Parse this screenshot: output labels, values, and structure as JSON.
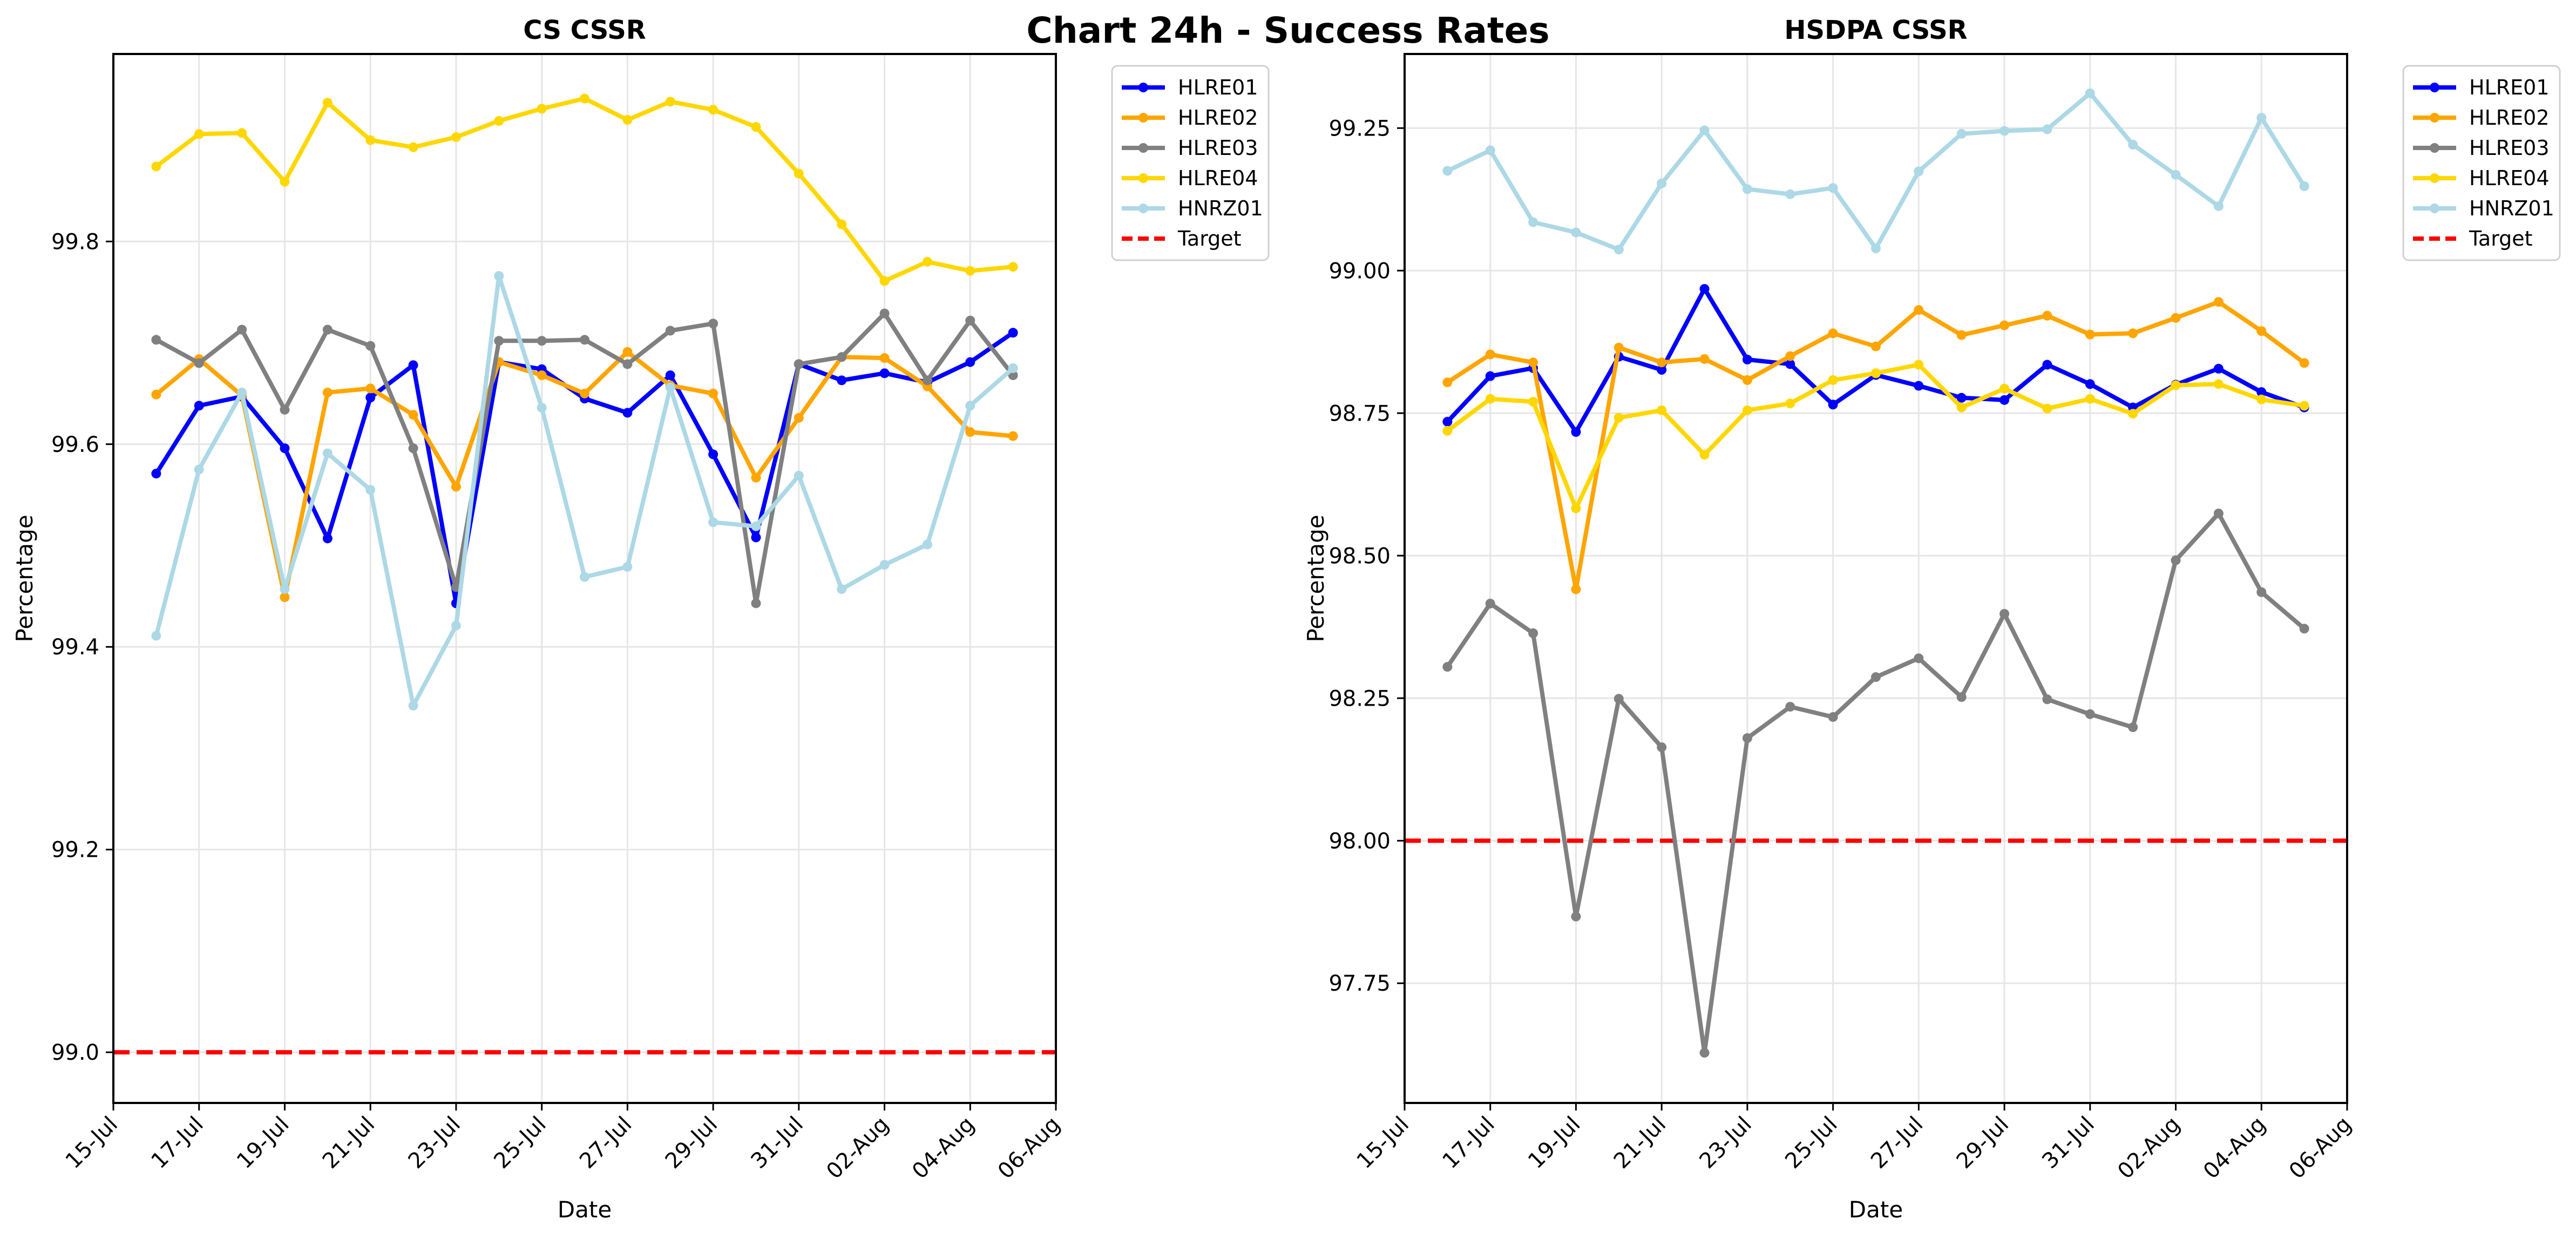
{
  "title": "Chart 24h - Success Rates",
  "chart_data": [
    {
      "type": "line",
      "title": "CS CSSR",
      "xlabel": "Date",
      "ylabel": "Percentage",
      "x": [
        "16-Jul",
        "17-Jul",
        "18-Jul",
        "19-Jul",
        "20-Jul",
        "21-Jul",
        "22-Jul",
        "23-Jul",
        "24-Jul",
        "25-Jul",
        "26-Jul",
        "27-Jul",
        "28-Jul",
        "29-Jul",
        "30-Jul",
        "31-Jul",
        "01-Aug",
        "02-Aug",
        "03-Aug",
        "04-Aug",
        "05-Aug"
      ],
      "xticks": [
        "15-Jul",
        "17-Jul",
        "19-Jul",
        "21-Jul",
        "23-Jul",
        "25-Jul",
        "27-Jul",
        "29-Jul",
        "31-Jul",
        "02-Aug",
        "04-Aug",
        "06-Aug"
      ],
      "yticks": [
        "99.0",
        "99.2",
        "99.4",
        "99.6",
        "99.8"
      ],
      "ylim": [
        98.95,
        99.985
      ],
      "grid": true,
      "legend_position": "outside-top-right",
      "series": [
        {
          "name": "HLRE01",
          "color": "#0000ff",
          "values": [
            99.571,
            99.638,
            99.647,
            99.596,
            99.507,
            99.646,
            99.678,
            99.443,
            99.681,
            99.674,
            99.645,
            99.631,
            99.668,
            99.59,
            99.508,
            99.679,
            99.663,
            99.67,
            99.661,
            99.681,
            99.71
          ]
        },
        {
          "name": "HLRE02",
          "color": "#ffa500",
          "values": [
            99.649,
            99.684,
            99.648,
            99.449,
            99.651,
            99.655,
            99.629,
            99.558,
            99.681,
            99.668,
            99.65,
            99.691,
            99.658,
            99.65,
            99.567,
            99.626,
            99.686,
            99.685,
            99.657,
            99.612,
            99.608
          ]
        },
        {
          "name": "HLRE03",
          "color": "#808080",
          "values": [
            99.703,
            99.68,
            99.713,
            99.634,
            99.713,
            99.697,
            99.596,
            99.459,
            99.702,
            99.702,
            99.703,
            99.679,
            99.712,
            99.719,
            99.443,
            99.679,
            99.686,
            99.729,
            99.663,
            99.722,
            99.668
          ]
        },
        {
          "name": "HLRE04",
          "color": "#ffd700",
          "values": [
            99.874,
            99.906,
            99.907,
            99.859,
            99.937,
            99.9,
            99.893,
            99.903,
            99.919,
            99.931,
            99.941,
            99.92,
            99.938,
            99.93,
            99.913,
            99.867,
            99.817,
            99.761,
            99.78,
            99.771,
            99.775
          ]
        },
        {
          "name": "HNRZ01",
          "color": "#add8e6",
          "values": [
            99.411,
            99.575,
            99.651,
            99.457,
            99.591,
            99.555,
            99.342,
            99.421,
            99.766,
            99.636,
            99.469,
            99.479,
            99.656,
            99.523,
            99.519,
            99.569,
            99.457,
            99.481,
            99.501,
            99.638,
            99.675
          ]
        }
      ],
      "target": {
        "name": "Target",
        "color": "#ff0000",
        "value": 99.0
      }
    },
    {
      "type": "line",
      "title": "HSDPA CSSR",
      "xlabel": "Date",
      "ylabel": "Percentage",
      "x": [
        "16-Jul",
        "17-Jul",
        "18-Jul",
        "19-Jul",
        "20-Jul",
        "21-Jul",
        "22-Jul",
        "23-Jul",
        "24-Jul",
        "25-Jul",
        "26-Jul",
        "27-Jul",
        "28-Jul",
        "29-Jul",
        "30-Jul",
        "31-Jul",
        "01-Aug",
        "02-Aug",
        "03-Aug",
        "04-Aug",
        "05-Aug"
      ],
      "xticks": [
        "15-Jul",
        "17-Jul",
        "19-Jul",
        "21-Jul",
        "23-Jul",
        "25-Jul",
        "27-Jul",
        "29-Jul",
        "31-Jul",
        "02-Aug",
        "04-Aug",
        "06-Aug"
      ],
      "yticks": [
        "97.75",
        "98.00",
        "98.25",
        "98.50",
        "98.75",
        "99.00",
        "99.25"
      ],
      "ylim": [
        97.54,
        99.38
      ],
      "grid": true,
      "legend_position": "outside-top-right",
      "series": [
        {
          "name": "HLRE01",
          "color": "#0000ff",
          "values": [
            98.735,
            98.815,
            98.829,
            98.717,
            98.849,
            98.826,
            98.968,
            98.844,
            98.836,
            98.765,
            98.817,
            98.798,
            98.777,
            98.773,
            98.835,
            98.801,
            98.76,
            98.8,
            98.828,
            98.787,
            98.76
          ]
        },
        {
          "name": "HLRE02",
          "color": "#ffa500",
          "values": [
            98.804,
            98.853,
            98.839,
            98.441,
            98.865,
            98.839,
            98.845,
            98.808,
            98.85,
            98.89,
            98.867,
            98.931,
            98.887,
            98.904,
            98.921,
            98.888,
            98.89,
            98.917,
            98.945,
            98.894,
            98.838
          ]
        },
        {
          "name": "HLRE03",
          "color": "#808080",
          "values": [
            98.305,
            98.416,
            98.364,
            97.867,
            98.249,
            98.164,
            97.628,
            98.18,
            98.235,
            98.217,
            98.287,
            98.32,
            98.252,
            98.398,
            98.248,
            98.222,
            98.199,
            98.492,
            98.574,
            98.436,
            98.372
          ]
        },
        {
          "name": "HLRE04",
          "color": "#ffd700",
          "values": [
            98.719,
            98.775,
            98.77,
            98.583,
            98.742,
            98.755,
            98.677,
            98.755,
            98.767,
            98.808,
            98.82,
            98.835,
            98.76,
            98.793,
            98.758,
            98.775,
            98.749,
            98.799,
            98.801,
            98.774,
            98.763
          ]
        },
        {
          "name": "HNRZ01",
          "color": "#add8e6",
          "values": [
            99.175,
            99.211,
            99.085,
            99.067,
            99.037,
            99.153,
            99.246,
            99.143,
            99.134,
            99.145,
            99.039,
            99.174,
            99.24,
            99.245,
            99.248,
            99.311,
            99.221,
            99.168,
            99.113,
            99.268,
            99.148
          ]
        }
      ],
      "target": {
        "name": "Target",
        "color": "#ff0000",
        "value": 98.0
      }
    }
  ]
}
